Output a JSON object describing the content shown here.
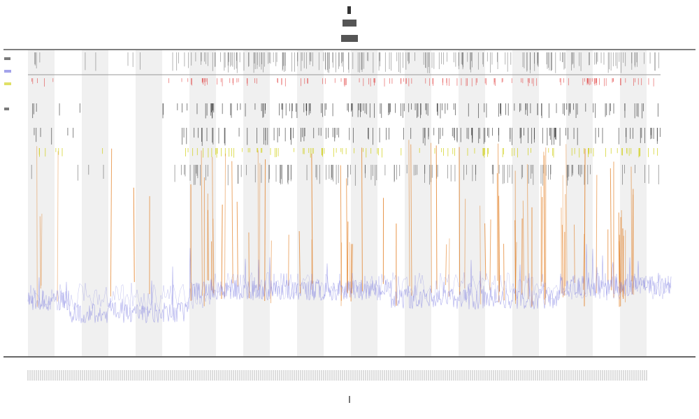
{
  "chart_data": {
    "type": "line",
    "title": "",
    "xlabel": "",
    "ylabel": "",
    "legend_placement": "left",
    "grid": false,
    "background_bands": "alternating",
    "series": [
      {
        "kind": "trace",
        "color": "#6666dd"
      },
      {
        "kind": "spikes",
        "color": "#e0700a"
      },
      {
        "kind": "ticks",
        "color": "#222222"
      },
      {
        "kind": "ticks",
        "color": "#cccc00"
      },
      {
        "kind": "ticks",
        "color": "#dd2222"
      }
    ]
  },
  "colors": {
    "band": "#f0f0f0",
    "axis": "#555555",
    "trace": "#6666dd",
    "spike": "#e0700a",
    "tick_dark": "#222222",
    "tick_yellow": "#cccc00",
    "tick_red": "#dd2222"
  }
}
